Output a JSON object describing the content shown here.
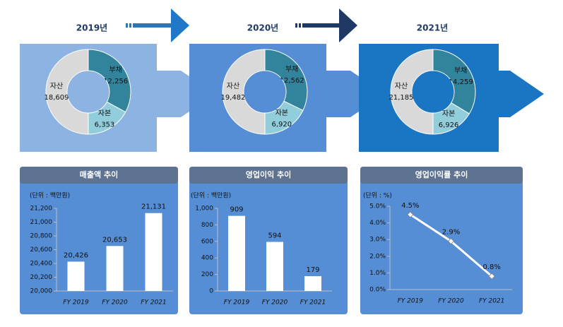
{
  "chart_data": [
    {
      "type": "donut",
      "title": "2019년",
      "categories": [
        "자산",
        "부채",
        "자본"
      ],
      "values": [
        18609,
        12256,
        6353
      ],
      "value_labels": [
        "18,609",
        "12,256",
        "6,353"
      ],
      "colors": [
        "#d9d9d9",
        "#31849b",
        "#92cddc"
      ]
    },
    {
      "type": "donut",
      "title": "2020년",
      "categories": [
        "자산",
        "부채",
        "자본"
      ],
      "values": [
        19482,
        12562,
        6920
      ],
      "value_labels": [
        "19,482",
        "12,562",
        "6,920"
      ],
      "colors": [
        "#d9d9d9",
        "#31849b",
        "#92cddc"
      ]
    },
    {
      "type": "donut",
      "title": "2021년",
      "categories": [
        "자산",
        "부채",
        "자본"
      ],
      "values": [
        21185,
        14259,
        6926
      ],
      "value_labels": [
        "21,185",
        "14,259",
        "6,926"
      ],
      "colors": [
        "#d9d9d9",
        "#31849b",
        "#92cddc"
      ]
    },
    {
      "type": "bar",
      "title": "매출액 추이",
      "subtitle": "(단위 : 백만원)",
      "categories": [
        "FY 2019",
        "FY 2020",
        "FY 2021"
      ],
      "values": [
        20426,
        20653,
        21131
      ],
      "value_labels": [
        "20,426",
        "20,653",
        "21,131"
      ],
      "color": "#ffffff",
      "ylim": [
        20000,
        21200
      ],
      "yticks": [
        {
          "value": 20000,
          "label": "20,000"
        },
        {
          "value": 20200,
          "label": "20,200"
        },
        {
          "value": 20400,
          "label": "20,400"
        },
        {
          "value": 20600,
          "label": "20,600"
        },
        {
          "value": 20800,
          "label": "20,800"
        },
        {
          "value": 21000,
          "label": "21,000"
        },
        {
          "value": 21200,
          "label": "21,200"
        }
      ]
    },
    {
      "type": "bar",
      "title": "영업이익 추이",
      "subtitle": "(단위 : 백만원)",
      "categories": [
        "FY 2019",
        "FY 2020",
        "FY 2021"
      ],
      "values": [
        909,
        594,
        179
      ],
      "color": "#ffffff",
      "ylim": [
        0,
        1000
      ],
      "yticks": [
        0,
        200,
        400,
        600,
        800,
        {
          "value": 1000,
          "label": "1,000"
        }
      ]
    },
    {
      "type": "line",
      "title": "영업이익률 추이",
      "subtitle": "(단위 : %)",
      "categories": [
        "FY 2019",
        "FY 2020",
        "FY 2021"
      ],
      "values": [
        4.5,
        2.9,
        0.8
      ],
      "value_labels": [
        "4.5%",
        "2.9%",
        "0.8%"
      ],
      "color": "#ffffff",
      "ylim": [
        0,
        5
      ],
      "yticks": [
        {
          "value": 0,
          "label": "0.0%"
        },
        {
          "value": 1,
          "label": "1.0%"
        },
        {
          "value": 2,
          "label": "2.0%"
        },
        {
          "value": 3,
          "label": "3.0%"
        },
        {
          "value": 4,
          "label": "4.0%"
        },
        {
          "value": 5,
          "label": "5.0%"
        }
      ]
    }
  ]
}
